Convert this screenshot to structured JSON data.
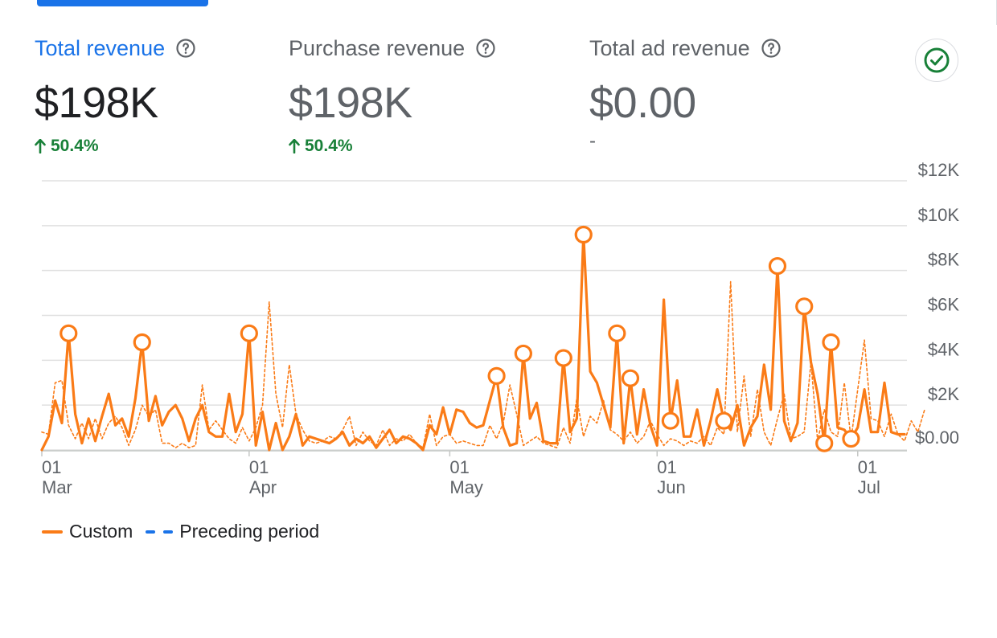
{
  "metrics": [
    {
      "label": "Total revenue",
      "value": "$198K",
      "delta": "50.4%",
      "active": true
    },
    {
      "label": "Purchase revenue",
      "value": "$198K",
      "delta": "50.4%",
      "active": false
    },
    {
      "label": "Total ad revenue",
      "value": "$0.00",
      "delta": "-",
      "active": false
    }
  ],
  "icons": {
    "help": "help-circle-icon",
    "check": "check-circle-icon",
    "up_arrow": "arrow-up-icon"
  },
  "colors": {
    "accent": "#1a73e8",
    "series": "#fa7b17",
    "positive": "#188038",
    "text": "#202124",
    "muted": "#5f6368"
  },
  "legend": {
    "custom": "Custom",
    "preceding": "Preceding period"
  },
  "chart_data": {
    "type": "line",
    "ylim": [
      0,
      12000
    ],
    "y_ticks": [
      "$0.00",
      "$2K",
      "$4K",
      "$6K",
      "$8K",
      "$10K",
      "$12K"
    ],
    "x_ticks": [
      {
        "day": 1,
        "top": "01",
        "bottom": "Mar"
      },
      {
        "day": 32,
        "top": "01",
        "bottom": "Apr"
      },
      {
        "day": 62,
        "top": "01",
        "bottom": "May"
      },
      {
        "day": 93,
        "top": "01",
        "bottom": "Jun"
      },
      {
        "day": 123,
        "top": "01",
        "bottom": "Jul"
      }
    ],
    "grid": true,
    "legend_position": "bottom-left",
    "series": [
      {
        "name": "Custom",
        "style": "solid",
        "values": [
          0,
          600,
          2200,
          1200,
          5200,
          1600,
          300,
          1400,
          400,
          1500,
          2500,
          1100,
          1400,
          600,
          2300,
          4800,
          1300,
          2400,
          1100,
          1700,
          2000,
          1400,
          400,
          1400,
          2000,
          800,
          600,
          600,
          2500,
          800,
          1600,
          5200,
          200,
          1700,
          0,
          1200,
          0,
          600,
          1600,
          200,
          600,
          500,
          400,
          300,
          500,
          800,
          200,
          500,
          300,
          600,
          100,
          500,
          900,
          300,
          600,
          500,
          300,
          0,
          1100,
          700,
          1900,
          700,
          1800,
          1700,
          1200,
          1000,
          1100,
          2200,
          3300,
          1000,
          200,
          300,
          4300,
          1400,
          2100,
          400,
          300,
          300,
          4100,
          800,
          1400,
          9600,
          3500,
          3000,
          2000,
          1000,
          5200,
          300,
          3200,
          700,
          2700,
          1100,
          200,
          6700,
          1300,
          3100,
          600,
          600,
          1800,
          200,
          1300,
          2700,
          1300,
          900,
          2000,
          200,
          1000,
          1500,
          3800,
          1800,
          8200,
          1300,
          400,
          1200,
          6400,
          3900,
          2500,
          300,
          4800,
          1000,
          900,
          500,
          1000,
          2700,
          800,
          800,
          3000,
          800,
          700,
          700
        ]
      },
      {
        "name": "Preceding period",
        "style": "dashed",
        "values": [
          800,
          700,
          3000,
          3100,
          1100,
          500,
          1200,
          500,
          1400,
          500,
          1200,
          1500,
          1000,
          200,
          900,
          2000,
          1500,
          1800,
          300,
          300,
          100,
          300,
          100,
          200,
          2900,
          900,
          1300,
          900,
          500,
          300,
          1000,
          400,
          1000,
          2000,
          6600,
          2500,
          1000,
          3800,
          1600,
          900,
          400,
          300,
          400,
          600,
          500,
          900,
          1500,
          200,
          800,
          400,
          200,
          900,
          200,
          500,
          400,
          700,
          300,
          100,
          1600,
          200,
          600,
          700,
          300,
          400,
          300,
          200,
          200,
          1100,
          500,
          1200,
          2900,
          1600,
          200,
          400,
          600,
          300,
          200,
          100,
          1000,
          300,
          2300,
          600,
          1500,
          1200,
          2200,
          900,
          700,
          400,
          800,
          300,
          600,
          1300,
          700,
          200,
          500,
          400,
          200,
          400,
          300,
          600,
          200,
          1000,
          700,
          7500,
          800,
          3300,
          600,
          2700,
          800,
          200,
          1400,
          2500,
          500,
          600,
          800,
          3900,
          400,
          1800,
          800,
          600,
          3000,
          500,
          2700,
          4900,
          1400,
          1300,
          600,
          1600,
          700,
          400,
          1300,
          800,
          1800
        ]
      }
    ],
    "markers": [
      4,
      15,
      31,
      68,
      72,
      78,
      81,
      86,
      88,
      94,
      102,
      110,
      114,
      117,
      118,
      121
    ]
  }
}
